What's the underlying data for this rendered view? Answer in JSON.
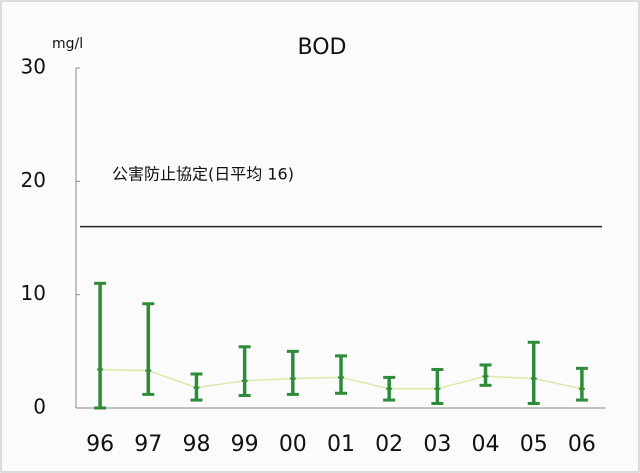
{
  "chart_data": {
    "type": "range",
    "title": "BOD",
    "unit": "mg/l",
    "categories": [
      "96",
      "97",
      "98",
      "99",
      "00",
      "01",
      "02",
      "03",
      "04",
      "05",
      "06"
    ],
    "high": [
      11,
      9.2,
      3.0,
      5.4,
      5.0,
      4.6,
      2.7,
      3.4,
      3.8,
      5.8,
      3.5
    ],
    "low": [
      0,
      1.2,
      0.7,
      1.1,
      1.2,
      1.3,
      0.7,
      0.4,
      2.0,
      0.4,
      0.7
    ],
    "mean": [
      3.4,
      3.3,
      1.8,
      2.4,
      2.6,
      2.7,
      1.7,
      1.7,
      2.8,
      2.6,
      1.7
    ],
    "color": "#2e8b3a",
    "mean_color": "#dfe8a8",
    "reference": {
      "label": "公害防止協定(日平均  16)",
      "value": 16
    },
    "ylim": [
      0,
      30
    ],
    "yticks": [
      0,
      10,
      20,
      30
    ]
  }
}
